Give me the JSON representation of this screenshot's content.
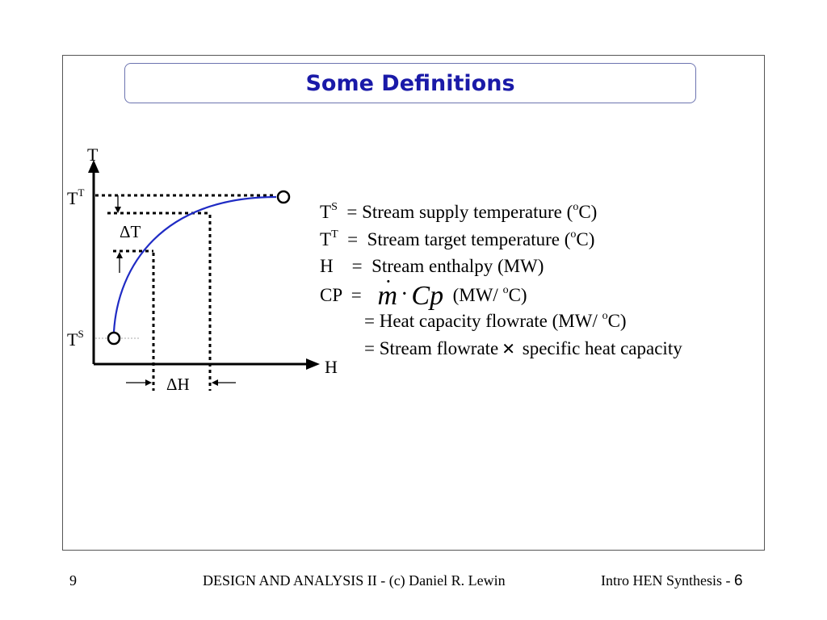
{
  "title": "Some Definitions",
  "diagram": {
    "y_axis_label": "T",
    "x_axis_label": "H",
    "target_temp_label": "T",
    "target_temp_sup": "T",
    "supply_temp_label": "T",
    "supply_temp_sup": "S",
    "delta_t_label": "ΔT",
    "delta_h_label": "ΔH"
  },
  "definitions": {
    "ts": {
      "sym": "T",
      "sup": "S",
      "text": "  = Stream supply temperature (",
      "unit_sup": "o",
      "unit_end": "C)"
    },
    "tt": {
      "sym": "T",
      "sup": "T",
      "text": "  =  Stream target temperature (",
      "unit_sup": "o",
      "unit_end": "C)"
    },
    "h": {
      "sym": "H",
      "text": "    =  Stream enthalpy (MW)"
    },
    "cp": {
      "sym": "CP",
      "eq": "  =",
      "math_m": "m",
      "math_dot": "·",
      "math_cp": "Cp",
      "unit_start": "  (MW/ ",
      "unit_sup": "o",
      "unit_end": "C)"
    },
    "heat_capacity": {
      "text": "= Heat capacity flowrate (MW/ ",
      "unit_sup": "o",
      "unit_end": "C)"
    },
    "flowrate": {
      "pre": "= Stream flowrate",
      "times": "✕",
      "post": " specific heat capacity"
    }
  },
  "footer": {
    "slide_number": "9",
    "course": "DESIGN AND ANALYSIS II - (c) Daniel R. Lewin",
    "section": "Intro HEN Synthesis - ",
    "page": "6"
  },
  "colors": {
    "title": "#1a1aa8",
    "curve": "#1f2bc4",
    "title_border": "#6c74b0"
  }
}
